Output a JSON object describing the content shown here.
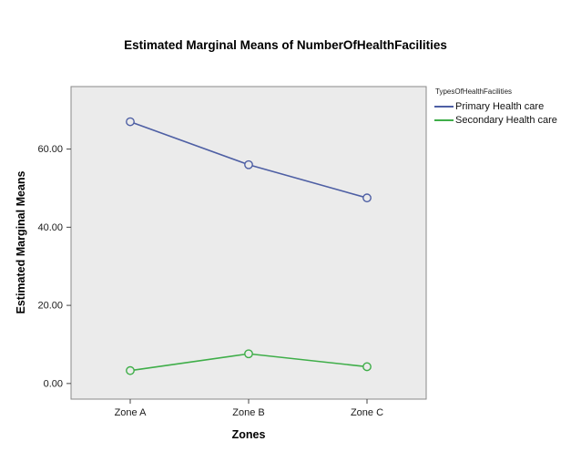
{
  "title": "Estimated Marginal Means of NumberOfHealthFacilities",
  "legend": {
    "title": "TypesOfHealthFacilities",
    "entries": [
      {
        "label": "Primary Health care",
        "color": "#4e5fa4"
      },
      {
        "label": "Secondary Health care",
        "color": "#3fae49"
      }
    ]
  },
  "chart_data": {
    "type": "line",
    "title": "Estimated Marginal Means of NumberOfHealthFacilities",
    "categories": [
      "Zone A",
      "Zone B",
      "Zone C"
    ],
    "series": [
      {
        "name": "Primary Health care",
        "color": "#4e5fa4",
        "values": [
          67,
          56,
          47.5
        ]
      },
      {
        "name": "Secondary Health care",
        "color": "#3fae49",
        "values": [
          3.3,
          7.6,
          4.3
        ]
      }
    ],
    "xlabel": "Zones",
    "ylabel": "Estimated Marginal Means",
    "yticks": [
      0,
      20,
      40,
      60
    ],
    "ytick_labels": [
      "0.00",
      "20.00",
      "40.00",
      "60.00"
    ],
    "ylim": [
      -4,
      76
    ],
    "grid": false,
    "legend_position": "right",
    "plot_bg": "#ebebeb",
    "frame_color": "#8a8a8a",
    "tick_color": "#444444",
    "marker": "open-circle"
  }
}
